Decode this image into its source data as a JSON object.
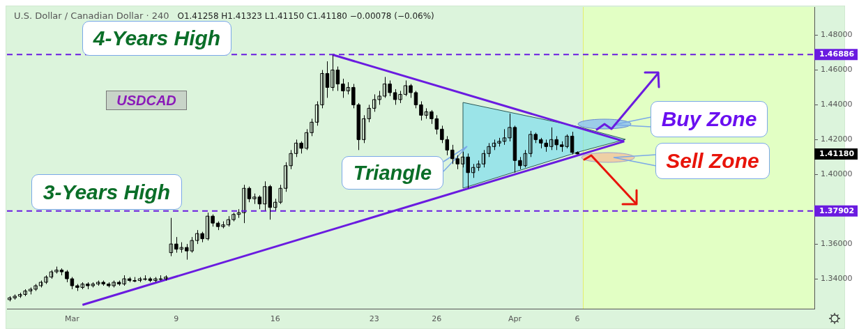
{
  "chart_data": {
    "type": "candlestick",
    "title": "U.S. Dollar / Canadian Dollar · 240",
    "subtitle": "O1.41258 H1.41323 L1.41150 C1.41180 −0.00078 (−0.06%)",
    "categories": [
      null,
      null,
      null,
      null,
      null,
      null,
      null,
      null,
      null,
      null,
      null,
      null,
      "Mar",
      null,
      null,
      null,
      null,
      null,
      null,
      null,
      null,
      null,
      null,
      null,
      null,
      null,
      null,
      null,
      null,
      null,
      null,
      null,
      "9",
      null,
      null,
      null,
      null,
      null,
      null,
      null,
      null,
      null,
      null,
      null,
      null,
      null,
      null,
      null,
      null,
      null,
      null,
      "16",
      null,
      null,
      null,
      null,
      null,
      null,
      null,
      null,
      null,
      null,
      null,
      null,
      null,
      null,
      null,
      null,
      null,
      null,
      "23",
      null,
      null,
      null,
      null,
      null,
      null,
      null,
      null,
      null,
      null,
      null,
      "26",
      null,
      null,
      null,
      null,
      null,
      null,
      null,
      null,
      null,
      null,
      null,
      null,
      null,
      null,
      "Apr",
      null,
      null,
      null,
      null,
      null,
      null,
      null,
      null,
      null,
      null,
      null,
      "6",
      null,
      null,
      null,
      null,
      null,
      null,
      null,
      null,
      null,
      null,
      null,
      null,
      null,
      null,
      null,
      null,
      null,
      null,
      null,
      null,
      null,
      null,
      null,
      null,
      null,
      null,
      null,
      null,
      null,
      null,
      null,
      null,
      null,
      null,
      null,
      null,
      null,
      null,
      null,
      null,
      null,
      null,
      null,
      null,
      null
    ],
    "color": "#000000",
    "ohlc": [
      [
        1.328,
        1.33,
        1.327,
        1.329
      ],
      [
        1.329,
        1.331,
        1.328,
        1.33
      ],
      [
        1.33,
        1.332,
        1.329,
        1.331
      ],
      [
        1.331,
        1.334,
        1.33,
        1.333
      ],
      [
        1.333,
        1.335,
        1.331,
        1.334
      ],
      [
        1.334,
        1.337,
        1.333,
        1.336
      ],
      [
        1.336,
        1.339,
        1.335,
        1.338
      ],
      [
        1.338,
        1.342,
        1.337,
        1.341
      ],
      [
        1.341,
        1.345,
        1.34,
        1.344
      ],
      [
        1.344,
        1.347,
        1.343,
        1.345
      ],
      [
        1.345,
        1.346,
        1.342,
        1.344
      ],
      [
        1.344,
        1.345,
        1.338,
        1.34
      ],
      [
        1.34,
        1.341,
        1.334,
        1.336
      ],
      [
        1.336,
        1.337,
        1.333,
        1.335
      ],
      [
        1.335,
        1.338,
        1.334,
        1.337
      ],
      [
        1.337,
        1.338,
        1.334,
        1.336
      ],
      [
        1.336,
        1.338,
        1.335,
        1.337
      ],
      [
        1.337,
        1.339,
        1.336,
        1.338
      ],
      [
        1.338,
        1.339,
        1.336,
        1.337
      ],
      [
        1.337,
        1.338,
        1.335,
        1.336
      ],
      [
        1.336,
        1.339,
        1.335,
        1.338
      ],
      [
        1.338,
        1.339,
        1.336,
        1.337
      ],
      [
        1.337,
        1.342,
        1.336,
        1.34
      ],
      [
        1.34,
        1.341,
        1.338,
        1.339
      ],
      [
        1.339,
        1.341,
        1.338,
        1.339
      ],
      [
        1.339,
        1.341,
        1.338,
        1.34
      ],
      [
        1.34,
        1.342,
        1.339,
        1.34
      ],
      [
        1.34,
        1.341,
        1.338,
        1.339
      ],
      [
        1.339,
        1.341,
        1.338,
        1.34
      ],
      [
        1.34,
        1.342,
        1.339,
        1.34
      ],
      [
        1.34,
        1.342,
        1.339,
        1.341
      ],
      [
        1.355,
        1.375,
        1.353,
        1.36
      ],
      [
        1.36,
        1.364,
        1.355,
        1.357
      ],
      [
        1.357,
        1.361,
        1.355,
        1.358
      ],
      [
        1.358,
        1.36,
        1.351,
        1.356
      ],
      [
        1.356,
        1.364,
        1.355,
        1.362
      ],
      [
        1.362,
        1.368,
        1.36,
        1.366
      ],
      [
        1.366,
        1.367,
        1.361,
        1.363
      ],
      [
        1.363,
        1.378,
        1.362,
        1.376
      ],
      [
        1.376,
        1.377,
        1.37,
        1.372
      ],
      [
        1.372,
        1.373,
        1.368,
        1.37
      ],
      [
        1.37,
        1.373,
        1.369,
        1.371
      ],
      [
        1.371,
        1.376,
        1.37,
        1.374
      ],
      [
        1.374,
        1.378,
        1.373,
        1.377
      ],
      [
        1.377,
        1.38,
        1.375,
        1.378
      ],
      [
        1.378,
        1.394,
        1.372,
        1.392
      ],
      [
        1.392,
        1.393,
        1.384,
        1.386
      ],
      [
        1.386,
        1.389,
        1.383,
        1.387
      ],
      [
        1.387,
        1.388,
        1.38,
        1.383
      ],
      [
        1.383,
        1.396,
        1.379,
        1.393
      ],
      [
        1.393,
        1.394,
        1.374,
        1.381
      ],
      [
        1.381,
        1.386,
        1.379,
        1.384
      ],
      [
        1.384,
        1.394,
        1.383,
        1.392
      ],
      [
        1.392,
        1.407,
        1.39,
        1.405
      ],
      [
        1.405,
        1.414,
        1.403,
        1.412
      ],
      [
        1.412,
        1.42,
        1.41,
        1.418
      ],
      [
        1.418,
        1.419,
        1.412,
        1.415
      ],
      [
        1.415,
        1.426,
        1.414,
        1.424
      ],
      [
        1.424,
        1.432,
        1.422,
        1.43
      ],
      [
        1.43,
        1.442,
        1.428,
        1.44
      ],
      [
        1.44,
        1.46,
        1.438,
        1.458
      ],
      [
        1.458,
        1.465,
        1.444,
        1.45
      ],
      [
        1.45,
        1.4688,
        1.448,
        1.46
      ],
      [
        1.46,
        1.462,
        1.448,
        1.452
      ],
      [
        1.452,
        1.455,
        1.444,
        1.448
      ],
      [
        1.448,
        1.453,
        1.446,
        1.45
      ],
      [
        1.45,
        1.452,
        1.438,
        1.44
      ],
      [
        1.44,
        1.441,
        1.414,
        1.42
      ],
      [
        1.42,
        1.434,
        1.418,
        1.432
      ],
      [
        1.432,
        1.44,
        1.43,
        1.438
      ],
      [
        1.438,
        1.446,
        1.436,
        1.443
      ],
      [
        1.443,
        1.448,
        1.44,
        1.445
      ],
      [
        1.445,
        1.456,
        1.444,
        1.452
      ],
      [
        1.452,
        1.454,
        1.445,
        1.447
      ],
      [
        1.447,
        1.449,
        1.44,
        1.443
      ],
      [
        1.443,
        1.448,
        1.441,
        1.446
      ],
      [
        1.446,
        1.454,
        1.445,
        1.451
      ],
      [
        1.451,
        1.452,
        1.444,
        1.447
      ],
      [
        1.447,
        1.448,
        1.438,
        1.44
      ],
      [
        1.44,
        1.442,
        1.431,
        1.434
      ],
      [
        1.434,
        1.438,
        1.432,
        1.436
      ],
      [
        1.436,
        1.437,
        1.429,
        1.432
      ],
      [
        1.432,
        1.434,
        1.423,
        1.426
      ],
      [
        1.426,
        1.428,
        1.418,
        1.42
      ],
      [
        1.42,
        1.422,
        1.411,
        1.414
      ],
      [
        1.414,
        1.417,
        1.406,
        1.409
      ],
      [
        1.409,
        1.411,
        1.403,
        1.406
      ],
      [
        1.406,
        1.413,
        1.404,
        1.41
      ],
      [
        1.41,
        1.412,
        1.392,
        1.401
      ],
      [
        1.401,
        1.406,
        1.398,
        1.404
      ],
      [
        1.404,
        1.408,
        1.402,
        1.406
      ],
      [
        1.406,
        1.414,
        1.404,
        1.412
      ],
      [
        1.412,
        1.418,
        1.41,
        1.416
      ],
      [
        1.416,
        1.42,
        1.414,
        1.418
      ],
      [
        1.418,
        1.421,
        1.416,
        1.419
      ],
      [
        1.419,
        1.426,
        1.417,
        1.421
      ],
      [
        1.421,
        1.435,
        1.419,
        1.427
      ],
      [
        1.427,
        1.428,
        1.401,
        1.408
      ],
      [
        1.408,
        1.41,
        1.403,
        1.405
      ],
      [
        1.405,
        1.414,
        1.404,
        1.412
      ],
      [
        1.412,
        1.425,
        1.41,
        1.423
      ],
      [
        1.423,
        1.424,
        1.418,
        1.42
      ],
      [
        1.42,
        1.421,
        1.415,
        1.418
      ],
      [
        1.418,
        1.42,
        1.413,
        1.416
      ],
      [
        1.416,
        1.427,
        1.414,
        1.42
      ],
      [
        1.42,
        1.422,
        1.414,
        1.417
      ],
      [
        1.417,
        1.419,
        1.413,
        1.416
      ],
      [
        1.416,
        1.423,
        1.415,
        1.422
      ],
      [
        1.422,
        1.4245,
        1.4115,
        1.4126
      ],
      [
        1.41258,
        1.41323,
        1.4115,
        1.4118
      ],
      null,
      null,
      null,
      null,
      null,
      null,
      null,
      null,
      null,
      null,
      null,
      null,
      null,
      null,
      null,
      null,
      null,
      null,
      null,
      null,
      null,
      null,
      null,
      null,
      null,
      null,
      null,
      null,
      null,
      null,
      null,
      null,
      null,
      null,
      null,
      null,
      null,
      null,
      null,
      null,
      null,
      null,
      null,
      null,
      null
    ],
    "series": [
      {
        "type": "line",
        "color": "#6a1be0",
        "values": [
          null,
          null,
          null,
          null,
          null,
          null,
          null,
          null,
          null,
          null,
          null,
          null,
          null,
          null,
          null,
          null,
          null,
          null,
          null,
          null,
          null,
          null,
          null,
          null,
          null,
          null,
          null,
          null,
          null,
          null,
          null,
          null,
          null,
          null,
          null,
          null,
          null,
          null,
          null,
          null,
          null,
          null,
          null,
          null,
          null,
          null,
          null,
          null,
          null,
          null,
          null,
          null,
          null,
          null,
          null,
          null,
          null,
          null,
          null,
          null,
          null,
          null,
          1.4688,
          null,
          null,
          null,
          null,
          null,
          null,
          null,
          null,
          null,
          null,
          null,
          null,
          null,
          null,
          null,
          null,
          null,
          null,
          null,
          null,
          null,
          null,
          null,
          null,
          null,
          null,
          null,
          null,
          null,
          null,
          null,
          null,
          null,
          null,
          null,
          null,
          null,
          null,
          null,
          null,
          null,
          null,
          null,
          null,
          null,
          null,
          null,
          null,
          null,
          null,
          null,
          null,
          null,
          null,
          null,
          1.419,
          null,
          null,
          null,
          null,
          null,
          null,
          null,
          null,
          null,
          null,
          null,
          null,
          null,
          null,
          null,
          null,
          null,
          null,
          null,
          null,
          null,
          null,
          null,
          null,
          null,
          null,
          null,
          null,
          null,
          null,
          null,
          null,
          null,
          null,
          null,
          null
        ]
      },
      {
        "type": "line",
        "color": "#6a1be0",
        "values": [
          null,
          null,
          null,
          null,
          null,
          null,
          null,
          null,
          null,
          null,
          null,
          null,
          null,
          null,
          1.325,
          null,
          null,
          null,
          null,
          null,
          null,
          null,
          null,
          null,
          null,
          null,
          null,
          null,
          null,
          null,
          null,
          null,
          null,
          null,
          null,
          null,
          null,
          null,
          null,
          null,
          null,
          null,
          null,
          null,
          null,
          null,
          null,
          null,
          null,
          null,
          null,
          null,
          null,
          null,
          null,
          null,
          null,
          null,
          null,
          null,
          null,
          null,
          null,
          null,
          null,
          null,
          null,
          null,
          null,
          null,
          null,
          null,
          null,
          null,
          null,
          null,
          null,
          null,
          null,
          null,
          null,
          null,
          null,
          null,
          null,
          null,
          null,
          null,
          null,
          null,
          null,
          null,
          null,
          null,
          null,
          null,
          null,
          null,
          null,
          null,
          null,
          null,
          null,
          null,
          null,
          null,
          null,
          null,
          null,
          null,
          null,
          null,
          null,
          null,
          null,
          null,
          null,
          null,
          1.419,
          null,
          null,
          null,
          null,
          null,
          null,
          null,
          null,
          null,
          null,
          null,
          null,
          null,
          null,
          null,
          null,
          null,
          null,
          null,
          null,
          null,
          null,
          null,
          null,
          null,
          null,
          null,
          null,
          null,
          null,
          null,
          null,
          null,
          null,
          null,
          null
        ]
      }
    ],
    "ylim": [
      1.3228,
      1.496
    ],
    "yticks": [
      {
        "value": 1.34,
        "label": "1.34000"
      },
      {
        "value": 1.36,
        "label": "1.36000"
      },
      {
        "value": 1.4,
        "label": "1.40000"
      },
      {
        "value": 1.42,
        "label": "1.42000"
      },
      {
        "value": 1.44,
        "label": "1.44000"
      },
      {
        "value": 1.46,
        "label": "1.46000"
      },
      {
        "value": 1.48,
        "label": "1.48000"
      }
    ],
    "grid": false,
    "ref_lines": [
      {
        "axis": "y",
        "value": 1.46886,
        "label": "1.46886",
        "color": "#6a1be0",
        "line_style": "dashed"
      },
      {
        "axis": "y",
        "value": 1.37902,
        "label": "1.37902",
        "color": "#6a1be0",
        "line_style": "dashed"
      }
    ],
    "annotations": [
      "4-Years High",
      "3-Years High",
      "USDCAD",
      "Triangle",
      "Buy Zone",
      "Sell Zone",
      "1.41180"
    ]
  }
}
